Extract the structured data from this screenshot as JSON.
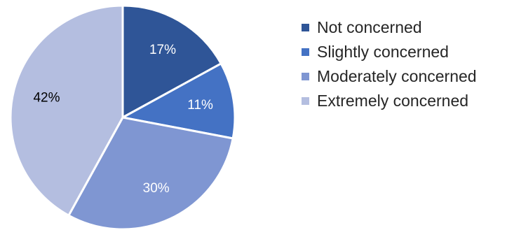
{
  "chart_data": {
    "type": "pie",
    "title": "",
    "categories": [
      "Not concerned",
      "Slightly concerned",
      "Moderately concerned",
      "Extremely concerned"
    ],
    "values": [
      17,
      11,
      30,
      42
    ],
    "data_labels": [
      "17%",
      "11%",
      "30%",
      "42%"
    ],
    "colors": [
      "#2f5597",
      "#4472c4",
      "#7f96d2",
      "#b4bee0"
    ],
    "label_colors": [
      "#ffffff",
      "#ffffff",
      "#ffffff",
      "#000000"
    ],
    "start": "12 o'clock",
    "direction": "clockwise",
    "legend_position": "right"
  }
}
